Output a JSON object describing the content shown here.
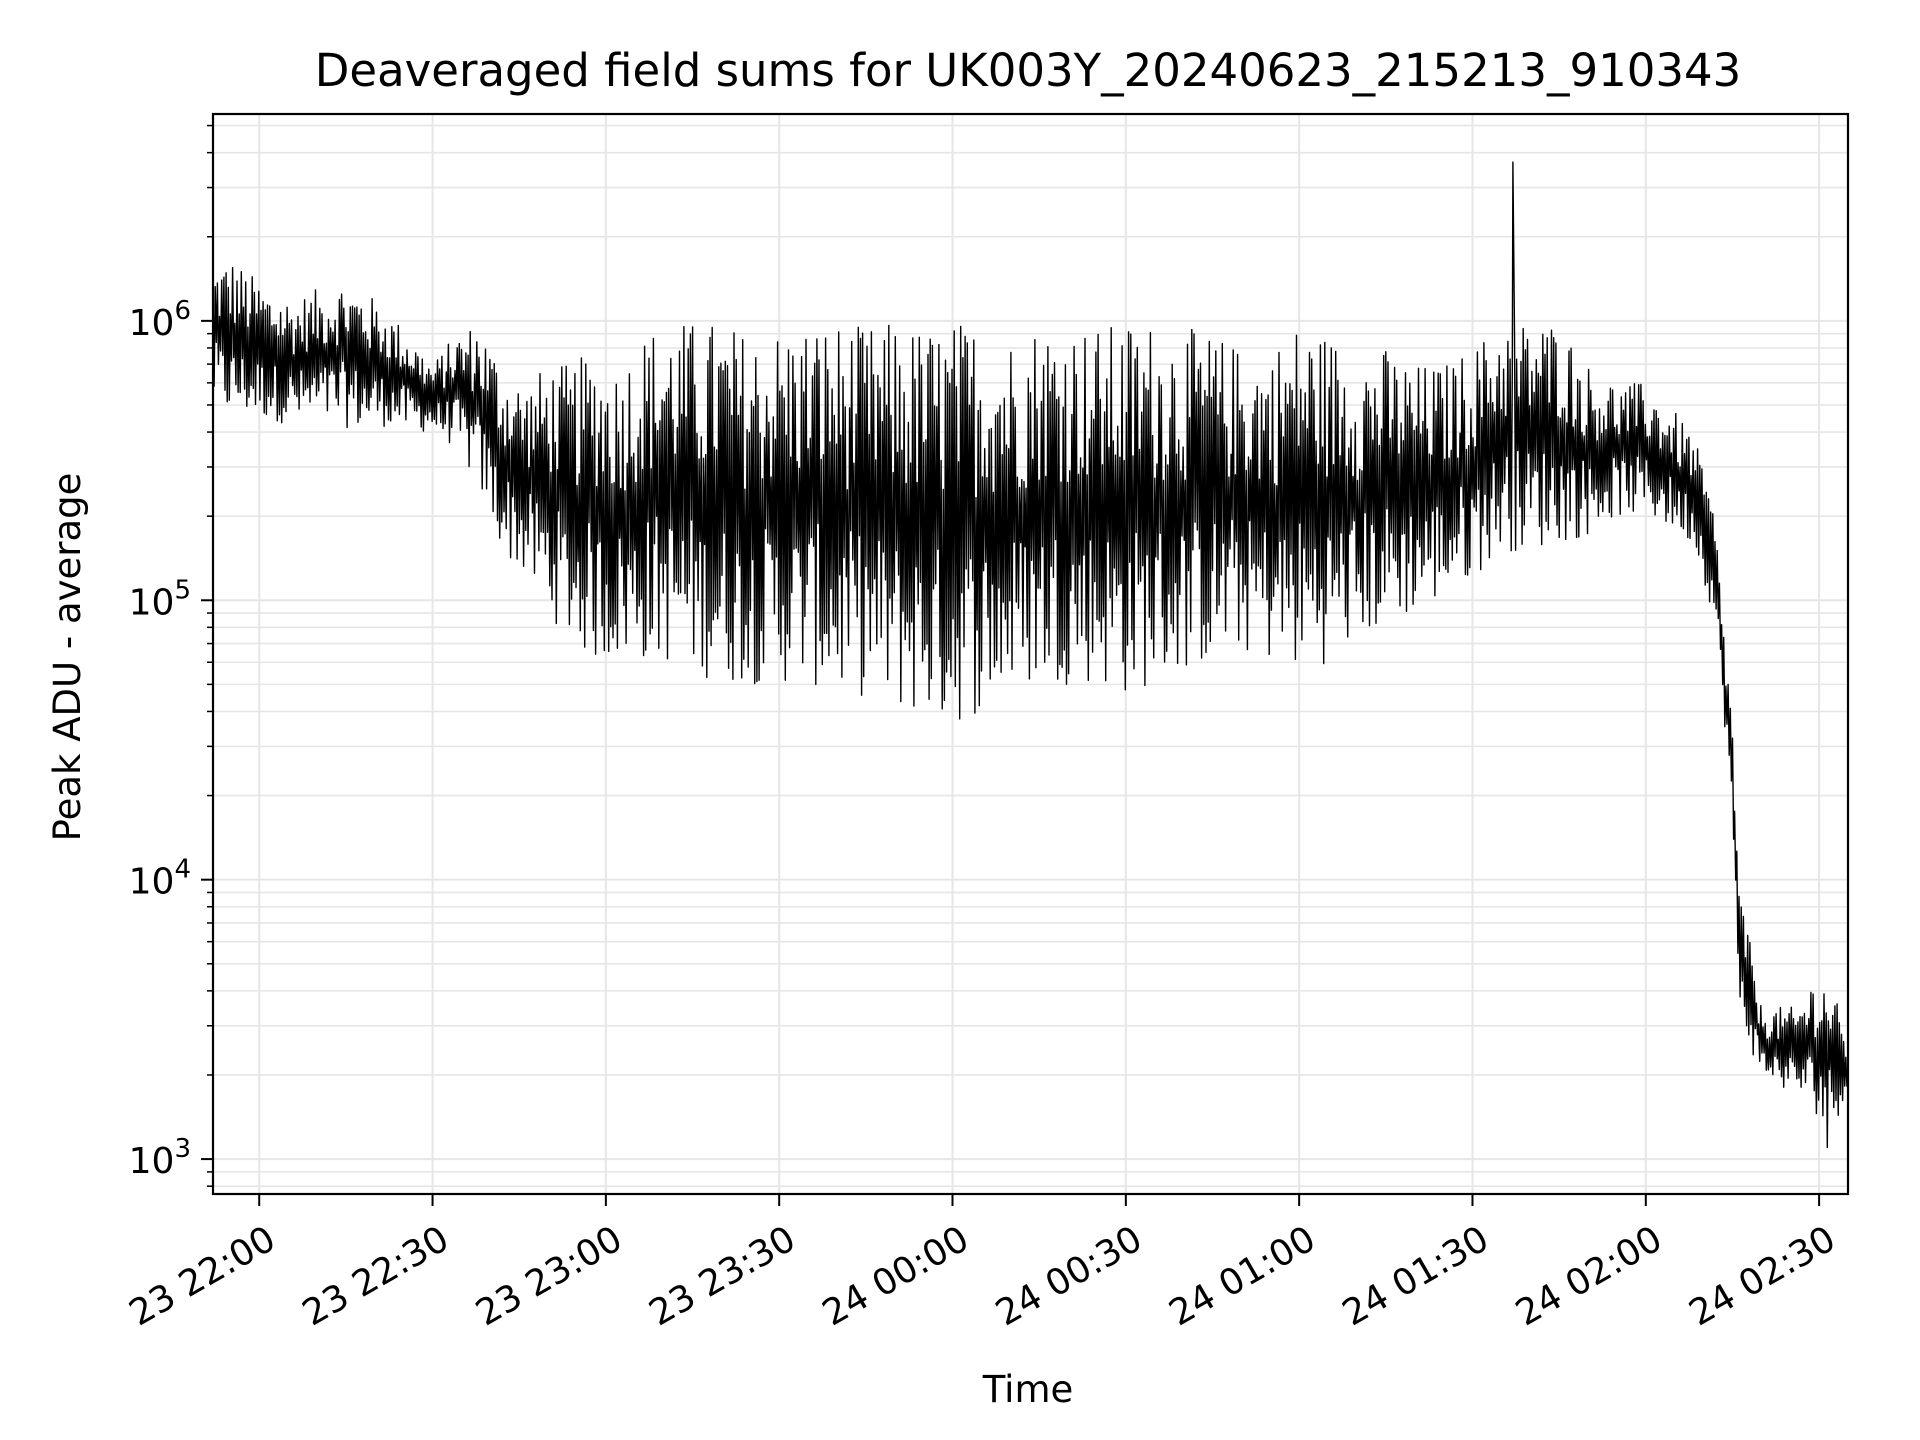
{
  "chart_data": {
    "type": "line",
    "title": "Deaveraged field sums for UK003Y_20240623_215213_910343",
    "xlabel": "Time",
    "ylabel": "Peak ADU - average",
    "yscale": "log",
    "xlim": [
      "2024-06-23 21:52",
      "2024-06-24 02:35"
    ],
    "ylim": [
      750,
      5500000
    ],
    "grid": true,
    "line_color": "#000000",
    "grid_color": "#e6e6e6",
    "x_ticks": [
      {
        "value": "2024-06-23 22:00",
        "label": "23 22:00"
      },
      {
        "value": "2024-06-23 22:30",
        "label": "23 22:30"
      },
      {
        "value": "2024-06-23 23:00",
        "label": "23 23:00"
      },
      {
        "value": "2024-06-23 23:30",
        "label": "23 23:30"
      },
      {
        "value": "2024-06-24 00:00",
        "label": "24 00:00"
      },
      {
        "value": "2024-06-24 00:30",
        "label": "24 00:30"
      },
      {
        "value": "2024-06-24 01:00",
        "label": "24 01:00"
      },
      {
        "value": "2024-06-24 01:30",
        "label": "24 01:30"
      },
      {
        "value": "2024-06-24 02:00",
        "label": "24 02:00"
      },
      {
        "value": "2024-06-24 02:30",
        "label": "24 02:30"
      }
    ],
    "y_ticks": [
      {
        "value": 1000,
        "base": "10",
        "exp": "3"
      },
      {
        "value": 10000,
        "base": "10",
        "exp": "4"
      },
      {
        "value": 100000,
        "base": "10",
        "exp": "5"
      },
      {
        "value": 1000000,
        "base": "10",
        "exp": "6"
      }
    ],
    "series": [
      {
        "color": "#000000",
        "x": [
          "2024-06-23 21:52",
          "2024-06-23 21:55",
          "2024-06-23 21:58",
          "2024-06-23 22:02",
          "2024-06-23 22:06",
          "2024-06-23 22:10",
          "2024-06-23 22:14",
          "2024-06-23 22:18",
          "2024-06-23 22:22",
          "2024-06-23 22:26",
          "2024-06-23 22:30",
          "2024-06-23 22:34",
          "2024-06-23 22:38",
          "2024-06-23 22:42",
          "2024-06-23 22:46",
          "2024-06-23 22:50",
          "2024-06-23 22:54",
          "2024-06-23 22:58",
          "2024-06-23 23:02",
          "2024-06-23 23:06",
          "2024-06-23 23:10",
          "2024-06-23 23:15",
          "2024-06-23 23:20",
          "2024-06-23 23:25",
          "2024-06-23 23:30",
          "2024-06-23 23:35",
          "2024-06-23 23:40",
          "2024-06-23 23:45",
          "2024-06-23 23:50",
          "2024-06-23 23:55",
          "2024-06-24 00:00",
          "2024-06-24 00:05",
          "2024-06-24 00:10",
          "2024-06-24 00:15",
          "2024-06-24 00:20",
          "2024-06-24 00:25",
          "2024-06-24 00:30",
          "2024-06-24 00:35",
          "2024-06-24 00:40",
          "2024-06-24 00:45",
          "2024-06-24 00:50",
          "2024-06-24 00:55",
          "2024-06-24 01:00",
          "2024-06-24 01:05",
          "2024-06-24 01:10",
          "2024-06-24 01:15",
          "2024-06-24 01:20",
          "2024-06-24 01:25",
          "2024-06-24 01:30",
          "2024-06-24 01:35",
          "2024-06-24 01:40",
          "2024-06-24 01:45",
          "2024-06-24 01:50",
          "2024-06-24 01:55",
          "2024-06-24 02:00",
          "2024-06-24 02:04",
          "2024-06-24 02:08",
          "2024-06-24 02:10",
          "2024-06-24 02:12",
          "2024-06-24 02:14",
          "2024-06-24 02:15",
          "2024-06-24 02:16",
          "2024-06-24 02:18",
          "2024-06-24 02:20",
          "2024-06-24 02:23",
          "2024-06-24 02:26",
          "2024-06-24 02:29",
          "2024-06-24 02:32",
          "2024-06-24 02:35"
        ],
        "upper": [
          1600000,
          1700000,
          1500000,
          1300000,
          1200000,
          1300000,
          1400000,
          1300000,
          1100000,
          900000,
          700000,
          900000,
          1000000,
          700000,
          600000,
          700000,
          700000,
          800000,
          700000,
          900000,
          1000000,
          1000000,
          1000000,
          900000,
          950000,
          1000000,
          1000000,
          950000,
          1000000,
          950000,
          1000000,
          1000000,
          900000,
          1000000,
          1000000,
          950000,
          1000000,
          1000000,
          950000,
          900000,
          800000,
          800000,
          1000000,
          900000,
          800000,
          800000,
          700000,
          700000,
          800000,
          1000000,
          1000000,
          1000000,
          700000,
          600000,
          600000,
          500000,
          400000,
          300000,
          200000,
          60000,
          40000,
          10000,
          6000,
          3500,
          3500,
          3500,
          4500,
          4500,
          2500
        ],
        "lower": [
          500000,
          450000,
          450000,
          440000,
          420000,
          420000,
          420000,
          400000,
          420000,
          400000,
          400000,
          350000,
          250000,
          150000,
          120000,
          90000,
          70000,
          60000,
          60000,
          60000,
          60000,
          55000,
          50000,
          50000,
          50000,
          50000,
          45000,
          45000,
          40000,
          38000,
          35000,
          40000,
          45000,
          50000,
          50000,
          50000,
          45000,
          50000,
          55000,
          60000,
          65000,
          60000,
          55000,
          60000,
          70000,
          80000,
          90000,
          100000,
          120000,
          150000,
          150000,
          160000,
          170000,
          200000,
          200000,
          180000,
          160000,
          120000,
          80000,
          30000,
          15000,
          3500,
          2500,
          2000,
          1800,
          1700,
          1500,
          1200,
          1800
        ],
        "peak": {
          "x": "2024-06-24 01:37",
          "value": 3700000
        },
        "min_value": 1100
      }
    ]
  }
}
